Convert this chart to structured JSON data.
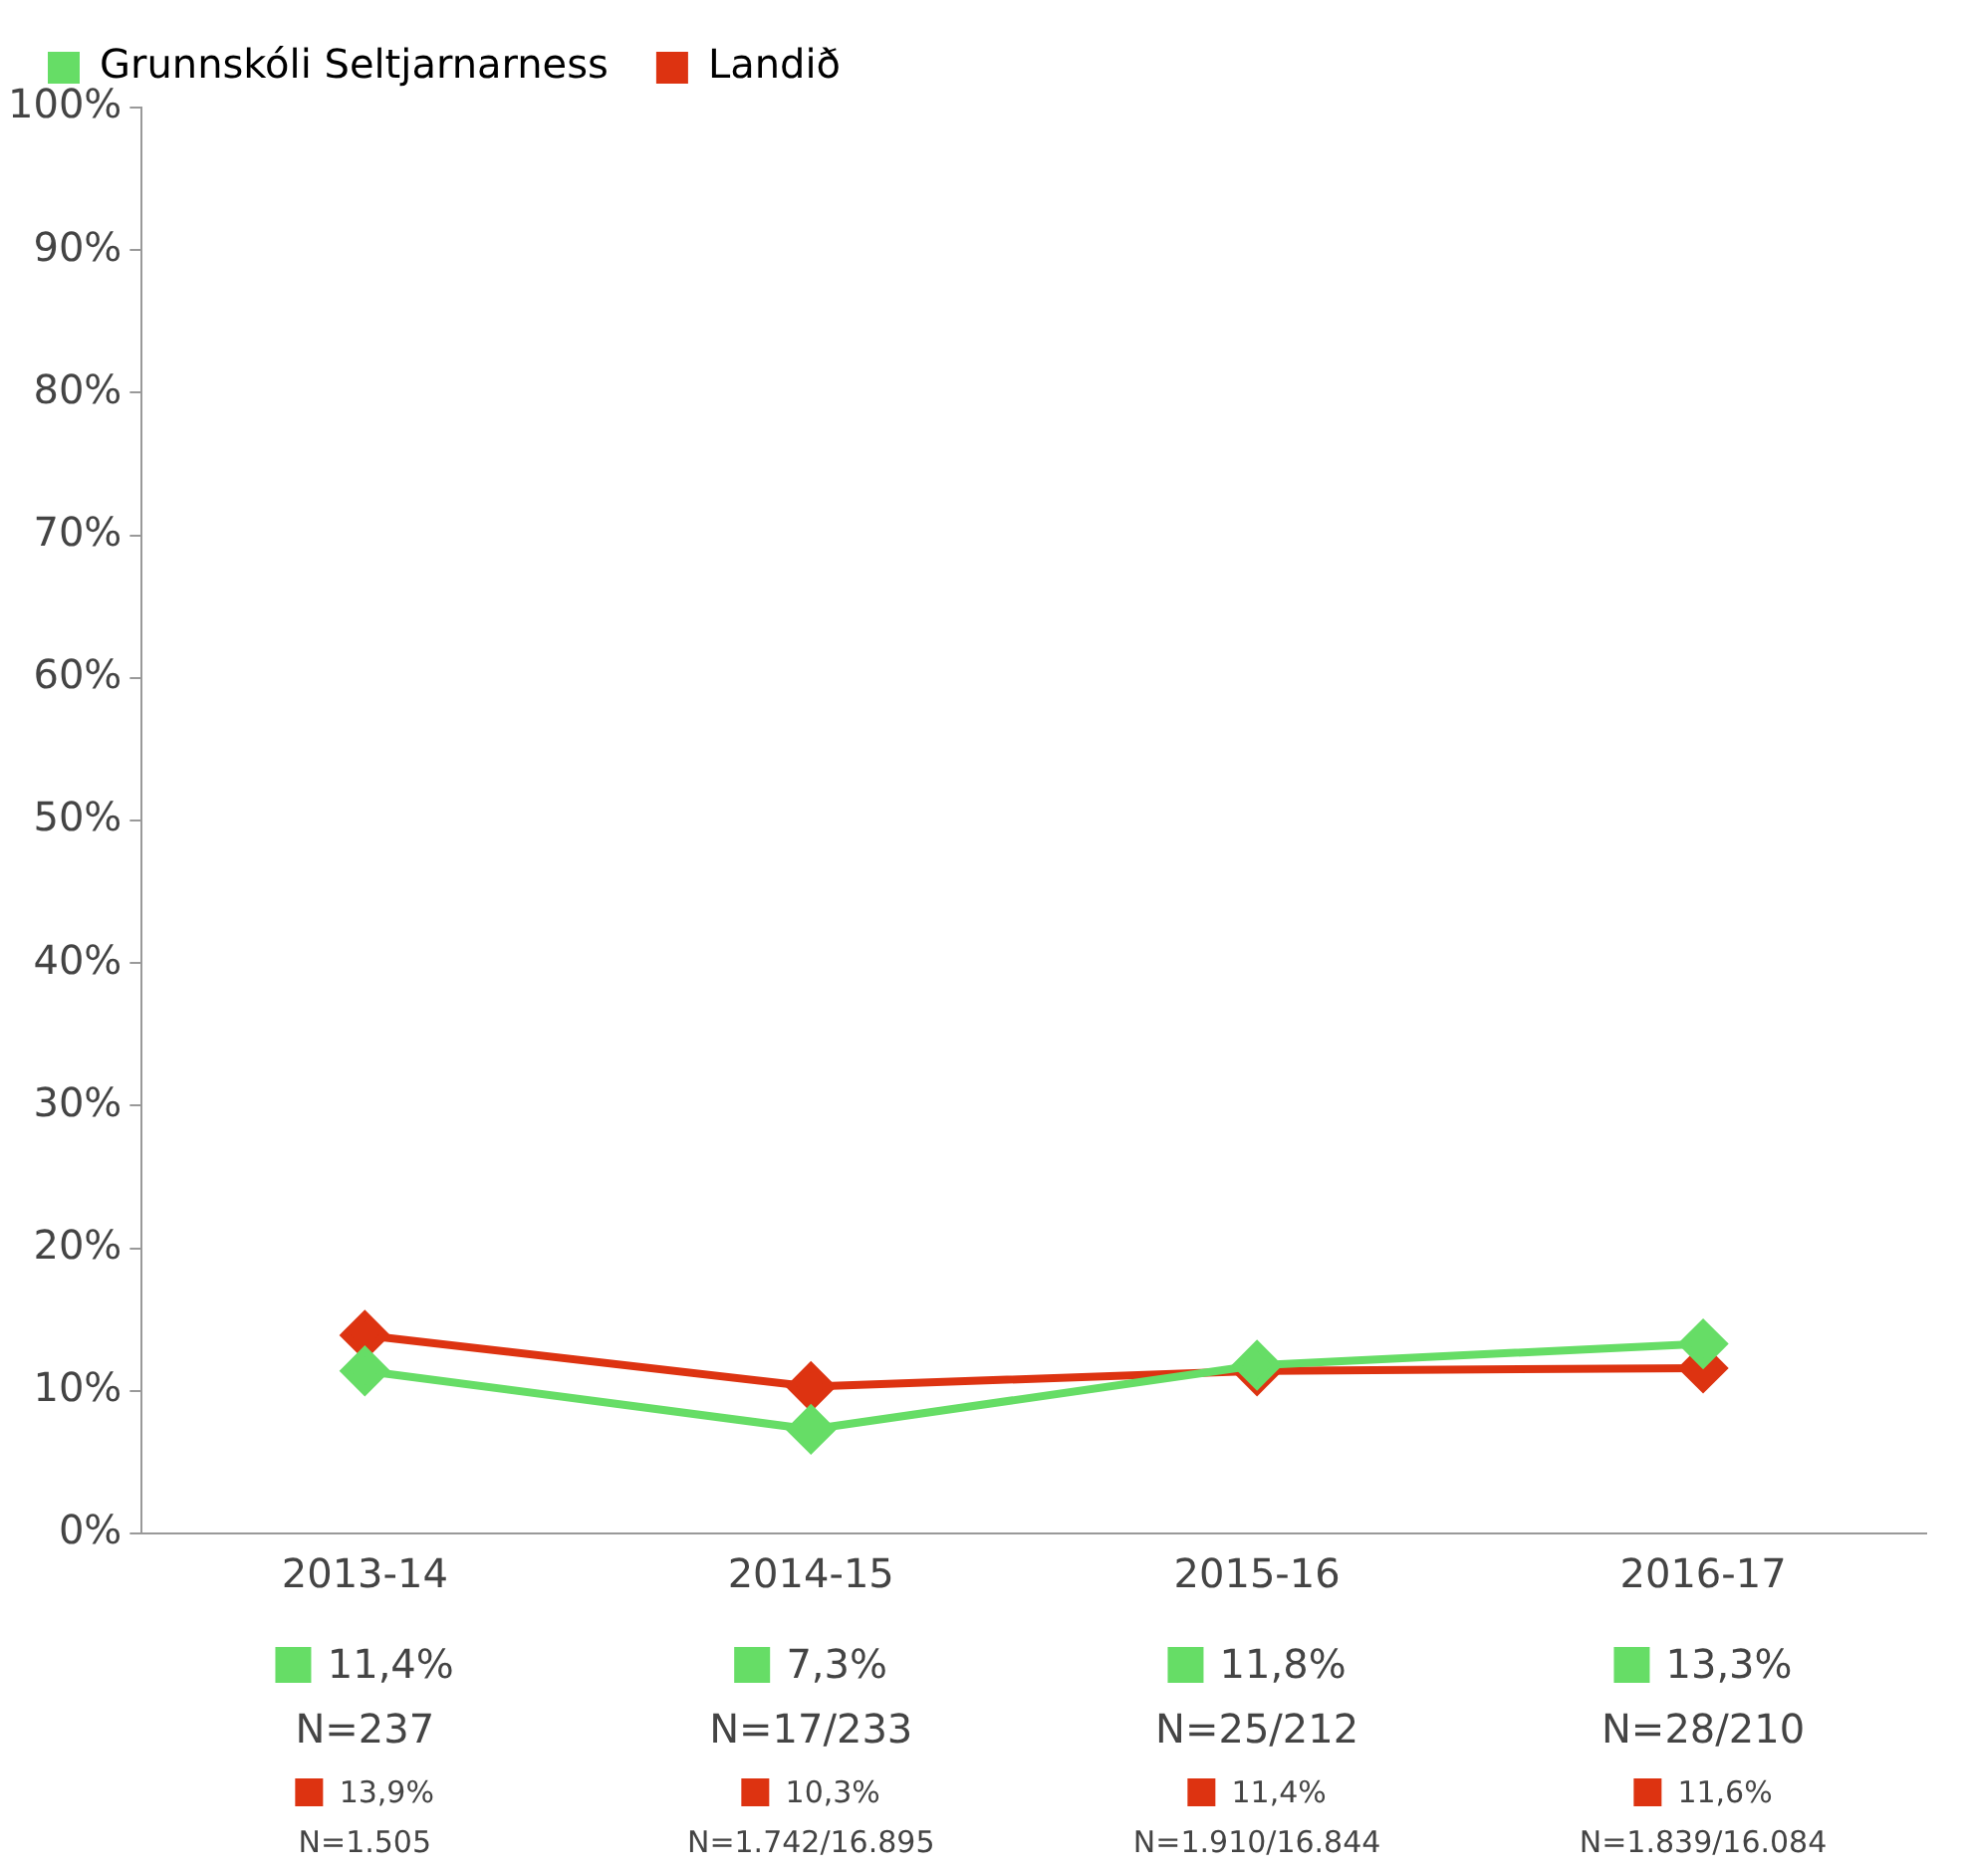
{
  "chart_data": {
    "type": "line",
    "categories": [
      "2013-14",
      "2014-15",
      "2015-16",
      "2016-17"
    ],
    "series": [
      {
        "name": "Grunnskóli Seltjarnarness",
        "color": "#66dd66",
        "values": [
          11.4,
          7.3,
          11.8,
          13.3
        ],
        "value_labels": [
          "11,4%",
          "7,3%",
          "11,8%",
          "13,3%"
        ]
      },
      {
        "name": "Landið",
        "color": "#dd3311",
        "values": [
          13.9,
          10.3,
          11.4,
          11.6
        ],
        "value_labels": [
          "13,9%",
          "10,3%",
          "11,4%",
          "11,6%"
        ]
      }
    ],
    "ylim": [
      0,
      100
    ],
    "yticks": [
      {
        "value": 0,
        "label": "0%"
      },
      {
        "value": 10,
        "label": "10%"
      },
      {
        "value": 20,
        "label": "20%"
      },
      {
        "value": 30,
        "label": "30%"
      },
      {
        "value": 40,
        "label": "40%"
      },
      {
        "value": 50,
        "label": "50%"
      },
      {
        "value": 60,
        "label": "60%"
      },
      {
        "value": 70,
        "label": "70%"
      },
      {
        "value": 80,
        "label": "80%"
      },
      {
        "value": 90,
        "label": "90%"
      },
      {
        "value": 100,
        "label": "100%"
      }
    ],
    "legend": "top left",
    "marker": "diamond",
    "line_style": "solid",
    "annotations": [
      "N=237",
      "N=1.505",
      "N=17/233",
      "N=1.742/16.895",
      "N=25/212",
      "N=1.910/16.844",
      "N=28/210",
      "N=1.839/16.084"
    ]
  }
}
